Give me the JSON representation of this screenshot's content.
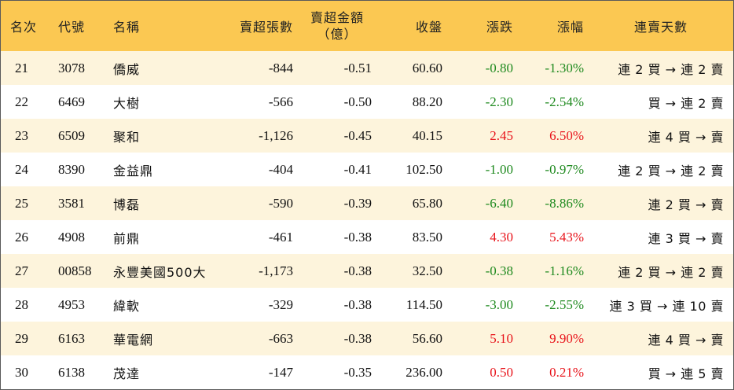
{
  "header": {
    "rank": "名次",
    "code": "代號",
    "name": "名稱",
    "net_sell_lots": "賣超張數",
    "net_sell_amount_line1": "賣超金額",
    "net_sell_amount_line2": "（億）",
    "close": "收盤",
    "change": "漲跌",
    "change_pct": "漲幅",
    "streak": "連賣天數"
  },
  "rows": [
    {
      "rank": "21",
      "code": "3078",
      "name": "僑威",
      "lots": "-844",
      "amount": "-0.51",
      "close": "60.60",
      "change": "-0.80",
      "pct": "-1.30%",
      "dir": "down",
      "streak": "連 2 買 → 連 2 賣"
    },
    {
      "rank": "22",
      "code": "6469",
      "name": "大樹",
      "lots": "-566",
      "amount": "-0.50",
      "close": "88.20",
      "change": "-2.30",
      "pct": "-2.54%",
      "dir": "down",
      "streak": "買 → 連 2 賣"
    },
    {
      "rank": "23",
      "code": "6509",
      "name": "聚和",
      "lots": "-1,126",
      "amount": "-0.45",
      "close": "40.15",
      "change": "2.45",
      "pct": "6.50%",
      "dir": "up",
      "streak": "連 4 買 → 賣"
    },
    {
      "rank": "24",
      "code": "8390",
      "name": "金益鼎",
      "lots": "-404",
      "amount": "-0.41",
      "close": "102.50",
      "change": "-1.00",
      "pct": "-0.97%",
      "dir": "down",
      "streak": "連 2 買 → 連 2 賣"
    },
    {
      "rank": "25",
      "code": "3581",
      "name": "博磊",
      "lots": "-590",
      "amount": "-0.39",
      "close": "65.80",
      "change": "-6.40",
      "pct": "-8.86%",
      "dir": "down",
      "streak": "連 2 買 → 賣"
    },
    {
      "rank": "26",
      "code": "4908",
      "name": "前鼎",
      "lots": "-461",
      "amount": "-0.38",
      "close": "83.50",
      "change": "4.30",
      "pct": "5.43%",
      "dir": "up",
      "streak": "連 3 買 → 賣"
    },
    {
      "rank": "27",
      "code": "00858",
      "name": "永豐美國500大",
      "lots": "-1,173",
      "amount": "-0.38",
      "close": "32.50",
      "change": "-0.38",
      "pct": "-1.16%",
      "dir": "down",
      "streak": "連 2 買 → 連 2 賣"
    },
    {
      "rank": "28",
      "code": "4953",
      "name": "緯軟",
      "lots": "-329",
      "amount": "-0.38",
      "close": "114.50",
      "change": "-3.00",
      "pct": "-2.55%",
      "dir": "down",
      "streak": "連 3 買 → 連 10 賣"
    },
    {
      "rank": "29",
      "code": "6163",
      "name": "華電網",
      "lots": "-663",
      "amount": "-0.38",
      "close": "56.60",
      "change": "5.10",
      "pct": "9.90%",
      "dir": "up",
      "streak": "連 4 買 → 賣"
    },
    {
      "rank": "30",
      "code": "6138",
      "name": "茂達",
      "lots": "-147",
      "amount": "-0.35",
      "close": "236.00",
      "change": "0.50",
      "pct": "0.21%",
      "dir": "up",
      "streak": "買 → 連 5 賣"
    }
  ],
  "colors": {
    "header_bg": "#fbc852",
    "odd_row_bg": "#fdf4dc",
    "even_row_bg": "#ffffff",
    "up": "#e8141b",
    "down": "#1f8a1f"
  }
}
